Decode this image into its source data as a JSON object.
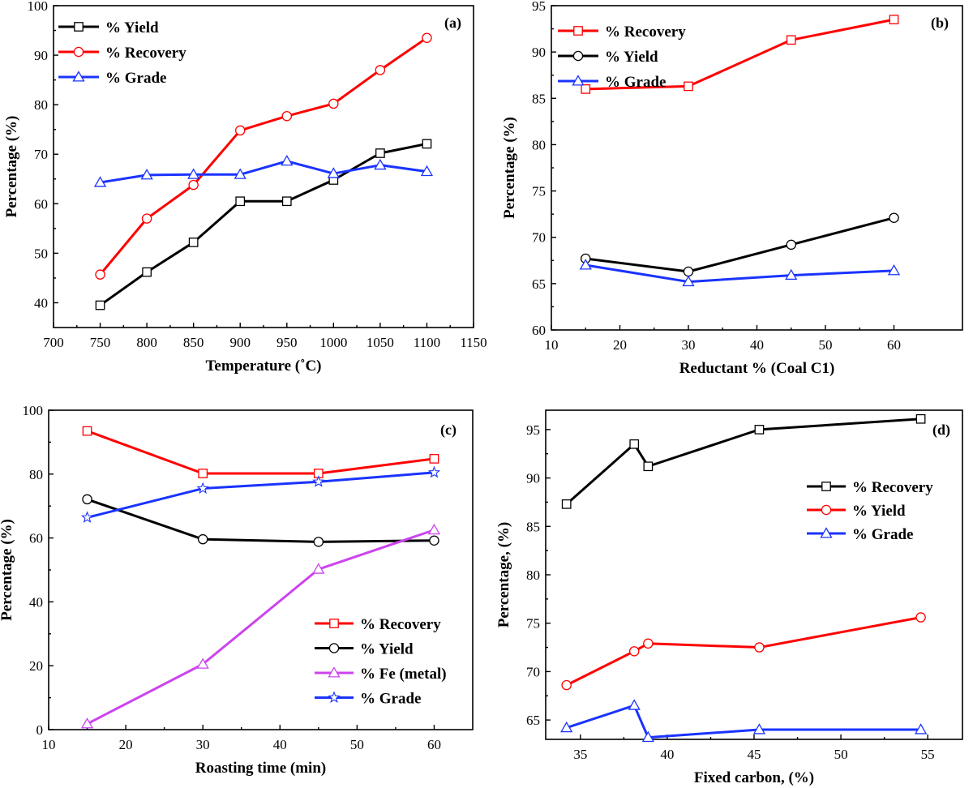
{
  "chart_data": [
    {
      "id": "a",
      "type": "line",
      "panel_label": "(a)",
      "xlabel": "Temperature (˚C)",
      "ylabel": "Percentage (%)",
      "xlim": [
        700,
        1150
      ],
      "ylim": [
        35,
        100
      ],
      "xticks": [
        700,
        750,
        800,
        850,
        900,
        950,
        1000,
        1050,
        1100,
        1150
      ],
      "yticks": [
        40,
        50,
        60,
        70,
        80,
        90,
        100
      ],
      "legend_position": "top-left",
      "series": [
        {
          "name": "% Yield",
          "color": "#000000",
          "marker": "square",
          "x": [
            750,
            800,
            850,
            900,
            950,
            1000,
            1050,
            1100
          ],
          "y": [
            39.5,
            46.2,
            52.2,
            60.5,
            60.5,
            64.8,
            70.2,
            72.1
          ]
        },
        {
          "name": "% Recovery",
          "color": "#ff0000",
          "marker": "circle",
          "x": [
            750,
            800,
            850,
            900,
            950,
            1000,
            1050,
            1100
          ],
          "y": [
            45.7,
            57.0,
            63.8,
            74.8,
            77.7,
            80.2,
            87.0,
            93.5
          ]
        },
        {
          "name": "% Grade",
          "color": "#1a33ff",
          "marker": "triangle",
          "x": [
            750,
            800,
            850,
            900,
            950,
            1000,
            1050,
            1100
          ],
          "y": [
            64.3,
            65.8,
            65.9,
            65.9,
            68.6,
            66.1,
            67.8,
            66.5
          ]
        }
      ]
    },
    {
      "id": "b",
      "type": "line",
      "panel_label": "(b)",
      "xlabel": "Reductant % (Coal C1)",
      "ylabel": "Percentage (%)",
      "xlim": [
        10,
        70
      ],
      "ylim": [
        60,
        95
      ],
      "xticks": [
        10,
        20,
        30,
        40,
        50,
        60
      ],
      "yticks": [
        60,
        65,
        70,
        75,
        80,
        85,
        90,
        95
      ],
      "legend_position": "top-left",
      "series": [
        {
          "name": "% Recovery",
          "color": "#ff0000",
          "marker": "square",
          "x": [
            15,
            30,
            45,
            60
          ],
          "y": [
            86.0,
            86.3,
            91.3,
            93.5
          ]
        },
        {
          "name": "% Yield",
          "color": "#000000",
          "marker": "circle",
          "x": [
            15,
            30,
            45,
            60
          ],
          "y": [
            67.7,
            66.3,
            69.2,
            72.1
          ]
        },
        {
          "name": "% Grade",
          "color": "#1a33ff",
          "marker": "triangle",
          "x": [
            15,
            30,
            45,
            60
          ],
          "y": [
            67.0,
            65.2,
            65.9,
            66.4
          ]
        }
      ]
    },
    {
      "id": "c",
      "type": "line",
      "panel_label": "(c)",
      "xlabel": "Roasting time (min)",
      "ylabel": "Percentage (%)",
      "xlim": [
        10,
        65
      ],
      "ylim": [
        0,
        100
      ],
      "xticks": [
        10,
        20,
        30,
        40,
        50,
        60
      ],
      "yticks": [
        0,
        20,
        40,
        60,
        80,
        100
      ],
      "legend_position": "bottom-right",
      "series": [
        {
          "name": "% Recovery",
          "color": "#ff0000",
          "marker": "square",
          "x": [
            15,
            30,
            45,
            60
          ],
          "y": [
            93.5,
            80.2,
            80.2,
            84.8
          ]
        },
        {
          "name": "% Yield",
          "color": "#000000",
          "marker": "circle",
          "x": [
            15,
            30,
            45,
            60
          ],
          "y": [
            72.1,
            59.6,
            58.8,
            59.2
          ]
        },
        {
          "name": "% Fe (metal)",
          "color": "#cc44ee",
          "marker": "triangle",
          "x": [
            15,
            30,
            45,
            60
          ],
          "y": [
            1.8,
            20.5,
            50.2,
            62.5
          ]
        },
        {
          "name": "% Grade",
          "color": "#1a33ff",
          "marker": "star",
          "x": [
            15,
            30,
            45,
            60
          ],
          "y": [
            66.4,
            75.5,
            77.6,
            80.5
          ]
        }
      ]
    },
    {
      "id": "d",
      "type": "line",
      "panel_label": "(d)",
      "xlabel": "Fixed carbon, (%)",
      "ylabel": "Percentage, (%)",
      "xlim": [
        33,
        57
      ],
      "ylim": [
        63,
        97
      ],
      "xticks": [
        35,
        40,
        45,
        50,
        55
      ],
      "yticks": [
        65,
        70,
        75,
        80,
        85,
        90,
        95
      ],
      "legend_position": "upper-right",
      "series": [
        {
          "name": "% Recovery",
          "color": "#000000",
          "marker": "square",
          "x": [
            34.2,
            38.1,
            38.9,
            45.3,
            54.6
          ],
          "y": [
            87.3,
            93.5,
            91.2,
            95.0,
            96.1
          ]
        },
        {
          "name": "% Yield",
          "color": "#ff0000",
          "marker": "circle",
          "x": [
            34.2,
            38.1,
            38.9,
            45.3,
            54.6
          ],
          "y": [
            68.6,
            72.1,
            72.9,
            72.5,
            75.6
          ]
        },
        {
          "name": "% Grade",
          "color": "#1a33ff",
          "marker": "triangle",
          "x": [
            34.2,
            38.1,
            38.9,
            45.3,
            54.6
          ],
          "y": [
            64.2,
            66.5,
            63.2,
            64.0,
            64.0
          ]
        }
      ]
    }
  ]
}
